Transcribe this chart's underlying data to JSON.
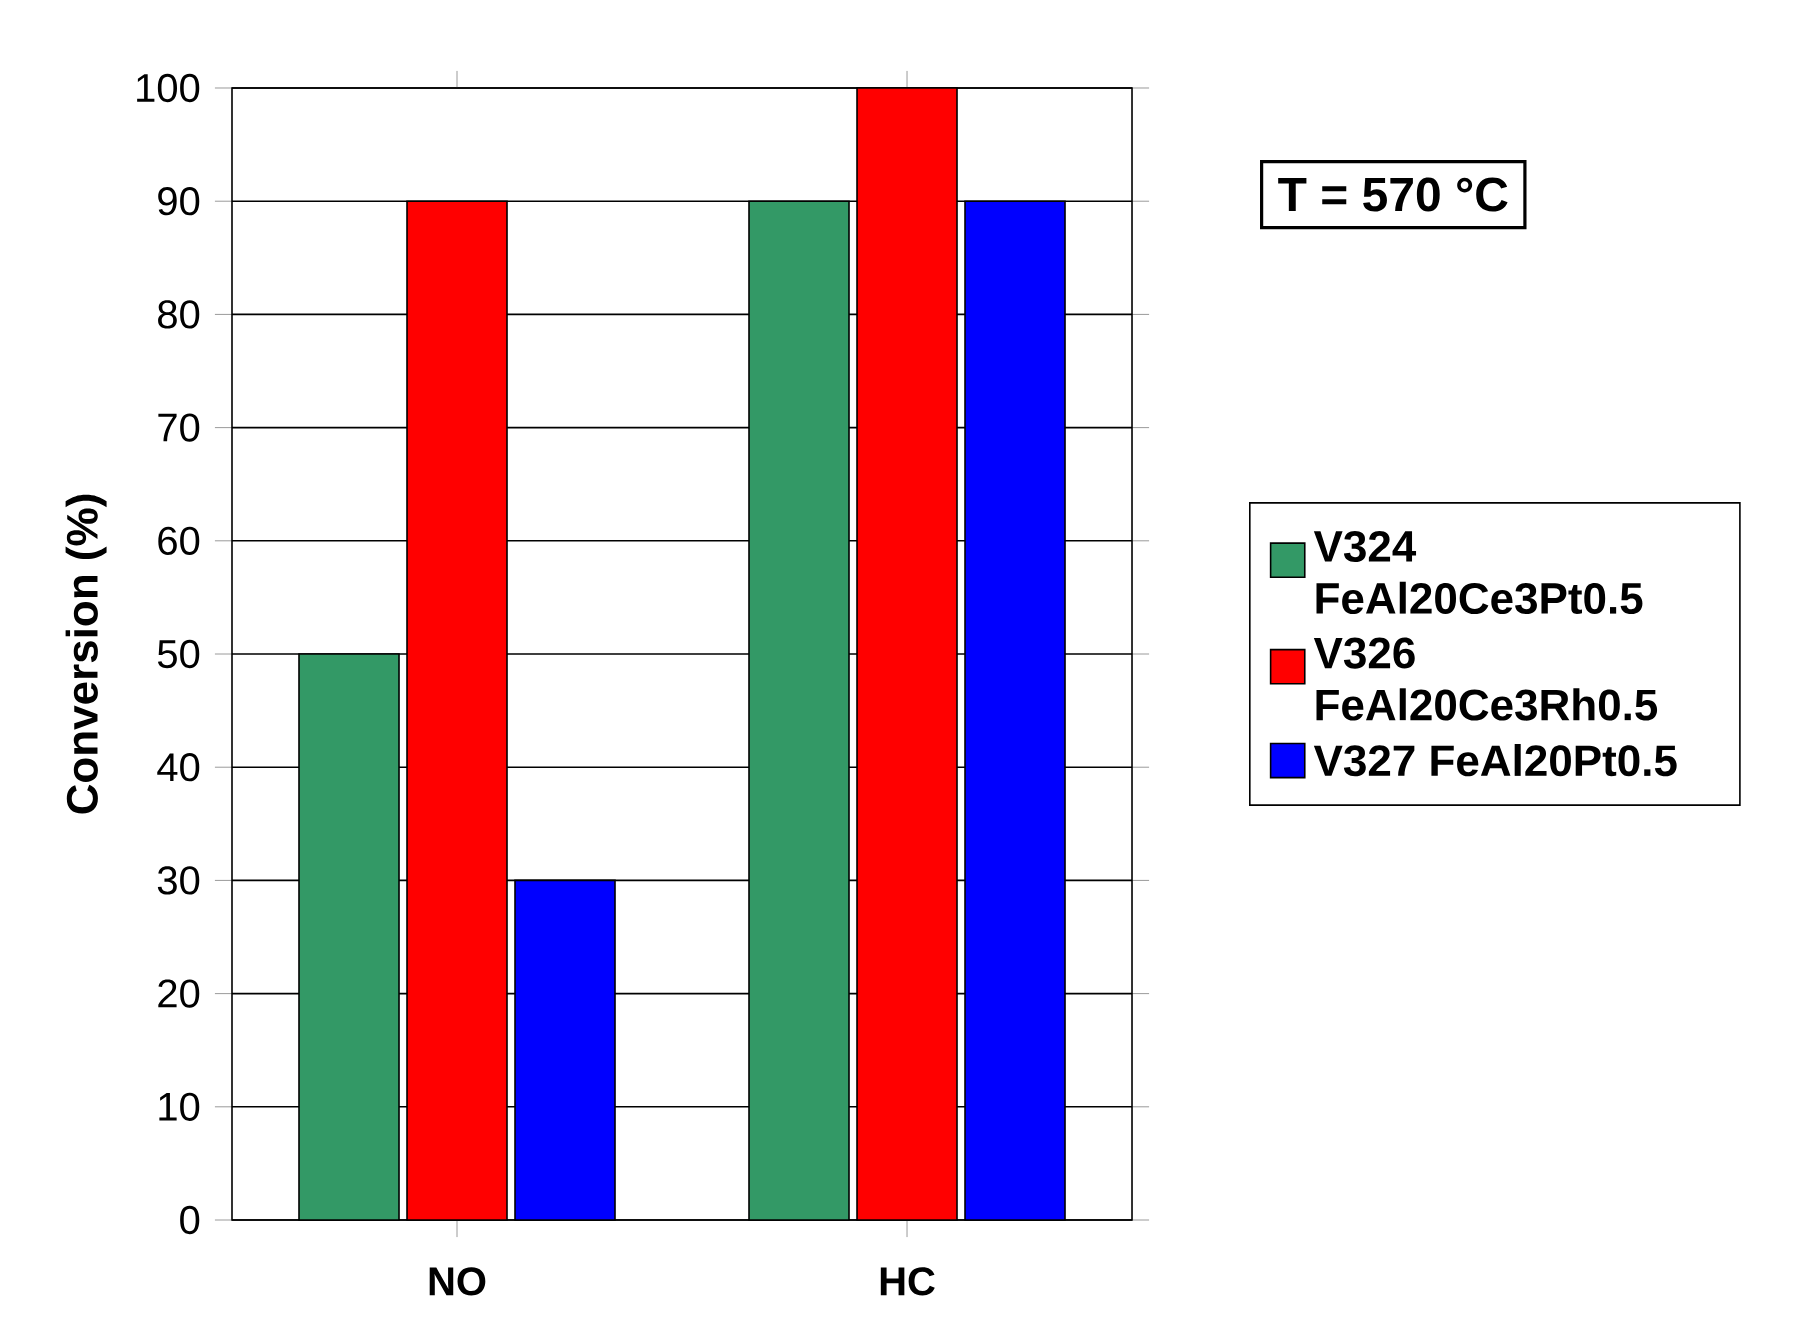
{
  "chart_data": {
    "type": "bar",
    "ylabel": "Conversion (%)",
    "categories": [
      "NO",
      "HC"
    ],
    "series": [
      {
        "name": "V324 FeAl20Ce3Pt0.5",
        "color": "#339966",
        "values": [
          50,
          90
        ]
      },
      {
        "name": "V326 FeAl20Ce3Rh0.5",
        "color": "#ff0000",
        "values": [
          90,
          100
        ]
      },
      {
        "name": "V327 FeAl20Pt0.5",
        "color": "#0000ff",
        "values": [
          30,
          90
        ]
      }
    ],
    "ylim": [
      0,
      100
    ],
    "yticks": [
      0,
      10,
      20,
      30,
      40,
      50,
      60,
      70,
      80,
      90,
      100
    ],
    "grid": "y",
    "legend": "right",
    "annotations": [
      "T = 570 °C"
    ]
  }
}
